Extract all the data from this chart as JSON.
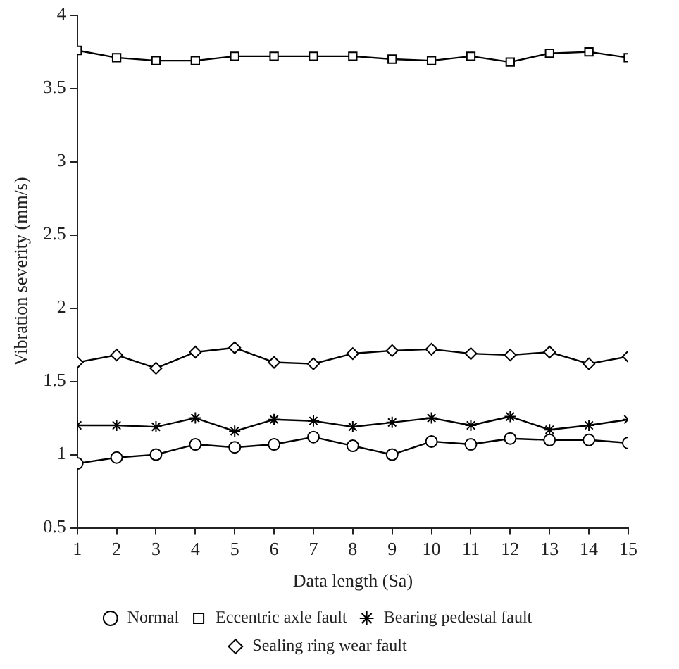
{
  "chart_data": {
    "type": "line",
    "xlabel": "Data length (Sa)",
    "ylabel": "Vibration severity (mm/s)",
    "x": [
      1,
      2,
      3,
      4,
      5,
      6,
      7,
      8,
      9,
      10,
      11,
      12,
      13,
      14,
      15
    ],
    "xlim": [
      1,
      15
    ],
    "xticks": [
      1,
      2,
      3,
      4,
      5,
      6,
      7,
      8,
      9,
      10,
      11,
      12,
      13,
      14,
      15
    ],
    "ylim": [
      0.5,
      4
    ],
    "yticks": [
      0.5,
      1,
      1.5,
      2,
      2.5,
      3,
      3.5,
      4
    ],
    "grid": false,
    "legend": "bottom",
    "line_style": "solid",
    "series": [
      {
        "name": "Normal",
        "color": "#000000",
        "marker": "circle",
        "values": [
          0.94,
          0.98,
          1.0,
          1.07,
          1.05,
          1.07,
          1.12,
          1.06,
          1.0,
          1.09,
          1.07,
          1.11,
          1.1,
          1.1,
          1.08
        ]
      },
      {
        "name": "Eccentric axle fault",
        "color": "#000000",
        "marker": "square",
        "values": [
          3.76,
          3.71,
          3.69,
          3.69,
          3.72,
          3.72,
          3.72,
          3.72,
          3.7,
          3.69,
          3.72,
          3.68,
          3.74,
          3.75,
          3.71
        ]
      },
      {
        "name": "Bearing pedestal fault",
        "color": "#000000",
        "marker": "cross",
        "values": [
          1.2,
          1.2,
          1.19,
          1.25,
          1.16,
          1.24,
          1.23,
          1.19,
          1.22,
          1.25,
          1.2,
          1.26,
          1.17,
          1.2,
          1.24
        ]
      },
      {
        "name": "Sealing ring wear fault",
        "color": "#000000",
        "marker": "diamond",
        "values": [
          1.63,
          1.68,
          1.59,
          1.7,
          1.73,
          1.63,
          1.62,
          1.69,
          1.71,
          1.72,
          1.69,
          1.68,
          1.7,
          1.62,
          1.67
        ]
      }
    ]
  }
}
